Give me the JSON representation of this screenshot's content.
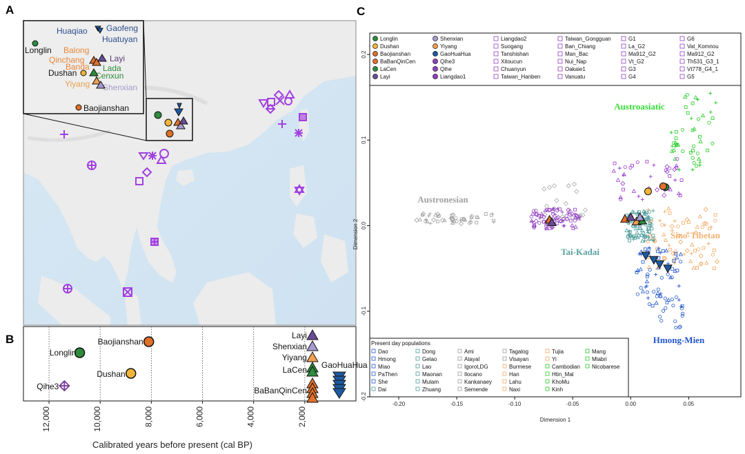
{
  "panels": {
    "a": {
      "letter": "A",
      "inset_sites": [
        {
          "name": "Huaqiao",
          "color": "#2b4e8c"
        },
        {
          "name": "Gaofeng",
          "color": "#2b4e8c"
        },
        {
          "name": "Huatuyan",
          "color": "#2b4e8c"
        },
        {
          "name": "Longlin",
          "color": "#111111"
        },
        {
          "name": "Balong",
          "color": "#e8873a"
        },
        {
          "name": "Qinchang",
          "color": "#e8873a"
        },
        {
          "name": "Banda",
          "color": "#e8873a"
        },
        {
          "name": "Layi",
          "color": "#5a3c7a"
        },
        {
          "name": "Lada",
          "color": "#2f8a3a"
        },
        {
          "name": "Cenxun",
          "color": "#2f8a3a"
        },
        {
          "name": "Dushan",
          "color": "#111111"
        },
        {
          "name": "Yiyang",
          "color": "#e8a14a"
        },
        {
          "name": "Shenxian",
          "color": "#a89ac8"
        },
        {
          "name": "Baojianshan",
          "color": "#111111"
        }
      ]
    },
    "b": {
      "letter": "B",
      "xlabel": "Calibrated years before present (cal BP)",
      "ticks": [
        "12,000",
        "10,000",
        "8,000",
        "6,000",
        "4,000",
        "2,000"
      ],
      "sites": [
        {
          "name": "Longlin",
          "years": 10800,
          "color": "#2e8b3d",
          "shape": "circle"
        },
        {
          "name": "Baojianshan",
          "years": 8100,
          "color": "#e0702a",
          "shape": "circle"
        },
        {
          "name": "Dushan",
          "years": 8800,
          "color": "#f2b43a",
          "shape": "circle"
        },
        {
          "name": "Qihe3",
          "years": 11400,
          "color": "#7a3a9a",
          "shape": "crossdiamond"
        },
        {
          "name": "Layi",
          "years": 1700,
          "color": "#6a4c96",
          "shape": "triangle"
        },
        {
          "name": "Shenxian",
          "years": 1700,
          "color": "#a99ad0",
          "shape": "triangle"
        },
        {
          "name": "Yiyang",
          "years": 1700,
          "color": "#f0a050",
          "shape": "triangle"
        },
        {
          "name": "LaCen",
          "years": 1700,
          "color": "#2e8b3d",
          "shape": "triangle"
        },
        {
          "name": "GaoHuaHua",
          "years": 650,
          "color": "#1e5aa0",
          "shape": "tridown"
        },
        {
          "name": "BaBanQinCen",
          "years": 1700,
          "color": "#e0702a",
          "shape": "triangle"
        }
      ]
    },
    "c": {
      "letter": "C",
      "xlabel": "Dimension 1",
      "ylabel": "Dimension 2",
      "xticks": [
        "-0.20",
        "-0.15",
        "-0.10",
        "-0.05",
        "0.00",
        "0.05"
      ],
      "yticks": [
        "0.2",
        "0.1",
        "0.0",
        "-0.1",
        "-0.2"
      ],
      "groups": [
        {
          "name": "Austroasiatic",
          "color": "#33dd33"
        },
        {
          "name": "Austronesian",
          "color": "#a0a0a0"
        },
        {
          "name": "Tai-Kadai",
          "color": "#5aa0a0"
        },
        {
          "name": "Sino-Tibetan",
          "color": "#f4b070"
        },
        {
          "name": "Hmong-Mien",
          "color": "#2255cc"
        }
      ],
      "ancient_legend": [
        [
          "Longlin",
          "Dushan",
          "Baojianshan",
          "BaBanQinCen",
          "LaCen",
          "Layi"
        ],
        [
          "Shenxian",
          "Yiyang",
          "GaoHuaHua",
          "Qihe3",
          "Qihe",
          "Liangdao1"
        ],
        [
          "Liangdao2",
          "Suogang",
          "Tanshishan",
          "Xitoucun",
          "Chuanyun",
          "Taiwan_Hanben"
        ],
        [
          "Taiwan_Gongguan",
          "Ban_Chiang",
          "Man_Bac",
          "Nui_Nap",
          "Oakaie1",
          "Vanuatu"
        ],
        [
          "G1",
          "La_G2",
          "Ma912_G2",
          "Vt_G2",
          "G3",
          "G4"
        ],
        [
          "G6",
          "Vat_Komnou",
          "Ma912_G2",
          "Th531_G3_1",
          "Vt778_G4_1",
          "G5"
        ]
      ],
      "present_title": "Present day populations",
      "present_legend": [
        [
          "Dao",
          "Hmong",
          "Miao",
          "PaThen",
          "She",
          "Dai"
        ],
        [
          "Dong",
          "Gelao",
          "Lao",
          "Maonan",
          "Mulam",
          "Zhuang"
        ],
        [
          "Ami",
          "Atayal",
          "Igorot,DG",
          "Ilocano",
          "Kankanaey",
          "Semende"
        ],
        [
          "Tagalog",
          "Visayan",
          "Burmese",
          "Han",
          "Lahu",
          "Naxi"
        ],
        [
          "Tujia",
          "Yi",
          "Cambodian",
          "Htin_Mal",
          "KhoMu",
          "Kinh"
        ],
        [
          "Mang",
          "Mlabri",
          "Nicobarese"
        ]
      ]
    }
  }
}
